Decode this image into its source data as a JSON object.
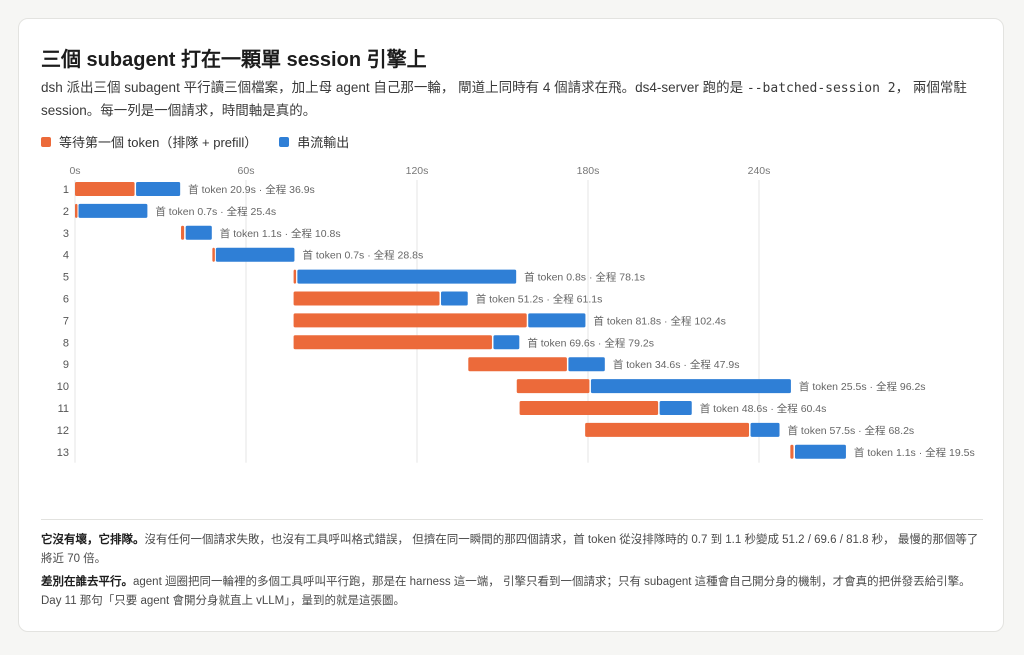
{
  "title": "三個 subagent 打在一顆單 session 引擎上",
  "desc": {
    "part1": "dsh 派出三個 subagent 平行讀三個檔案，加上母 agent 自己那一輪， 閘道上同時有 4 個請求在飛。ds4-server 跑的是 ",
    "code": "--batched-session 2",
    "part2": "， 兩個常駐 session。每一列是一個請求，時間軸是真的。"
  },
  "legend": {
    "wait": "等待第一個 token（排隊 + prefill）",
    "stream": "串流輸出"
  },
  "colors": {
    "wait": "#ec6a3a",
    "stream": "#2f7fd6",
    "grid": "#e6e6e6",
    "label": "#666666"
  },
  "annotation": {
    "first_prefix": "首 token ",
    "sep": " · ",
    "total_prefix": "全程 "
  },
  "chart_data": {
    "type": "gantt",
    "x_unit": "s",
    "x_ticks": [
      0,
      60,
      120,
      180,
      240
    ],
    "x_tick_labels": [
      "0s",
      "60s",
      "120s",
      "180s",
      "240s"
    ],
    "x_range": [
      0,
      320
    ],
    "rows": [
      {
        "id": "1",
        "start": 0.0,
        "first_token": 20.9,
        "total": 36.9,
        "first_label": "20.9s",
        "total_label": "36.9s"
      },
      {
        "id": "2",
        "start": 0.0,
        "first_token": 0.7,
        "total": 25.4,
        "first_label": "0.7s",
        "total_label": "25.4s"
      },
      {
        "id": "3",
        "start": 37.2,
        "first_token": 1.1,
        "total": 10.8,
        "first_label": "1.1s",
        "total_label": "10.8s"
      },
      {
        "id": "4",
        "start": 48.2,
        "first_token": 0.7,
        "total": 28.8,
        "first_label": "0.7s",
        "total_label": "28.8s"
      },
      {
        "id": "5",
        "start": 76.7,
        "first_token": 0.8,
        "total": 78.1,
        "first_label": "0.8s",
        "total_label": "78.1s"
      },
      {
        "id": "6",
        "start": 76.7,
        "first_token": 51.2,
        "total": 61.1,
        "first_label": "51.2s",
        "total_label": "61.1s"
      },
      {
        "id": "7",
        "start": 76.7,
        "first_token": 81.8,
        "total": 102.4,
        "first_label": "81.8s",
        "total_label": "102.4s"
      },
      {
        "id": "8",
        "start": 76.7,
        "first_token": 69.6,
        "total": 79.2,
        "first_label": "69.6s",
        "total_label": "79.2s"
      },
      {
        "id": "9",
        "start": 138.0,
        "first_token": 34.6,
        "total": 47.9,
        "first_label": "34.6s",
        "total_label": "47.9s"
      },
      {
        "id": "10",
        "start": 155.0,
        "first_token": 25.5,
        "total": 96.2,
        "first_label": "25.5s",
        "total_label": "96.2s"
      },
      {
        "id": "11",
        "start": 156.0,
        "first_token": 48.6,
        "total": 60.4,
        "first_label": "48.6s",
        "total_label": "60.4s"
      },
      {
        "id": "12",
        "start": 179.0,
        "first_token": 57.5,
        "total": 68.2,
        "first_label": "57.5s",
        "total_label": "68.2s"
      },
      {
        "id": "13",
        "start": 251.0,
        "first_token": 1.1,
        "total": 19.5,
        "first_label": "1.1s",
        "total_label": "19.5s"
      }
    ]
  },
  "notes": {
    "n1_bold": "它沒有壞，它排隊。",
    "n1_text": "沒有任何一個請求失敗，也沒有工具呼叫格式錯誤， 但擠在同一瞬間的那四個請求，首 token 從沒排隊時的 0.7 到 1.1 秒變成 51.2 / 69.6 / 81.8 秒， 最慢的那個等了將近 70 倍。",
    "n2_bold": "差別在誰去平行。",
    "n2_text": "agent 迴圈把同一輪裡的多個工具呼叫平行跑，那是在 harness 這一端， 引擎只看到一個請求；只有 subagent 這種會自己開分身的機制，才會真的把併發丟給引擎。 Day 11 那句「只要 agent 會開分身就直上 vLLM」，量到的就是這張圖。"
  }
}
